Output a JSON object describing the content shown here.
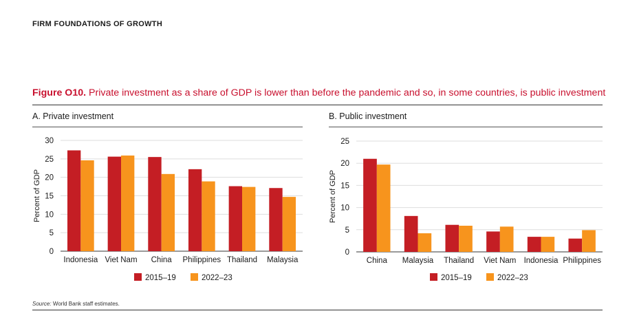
{
  "header": "FIRM FOUNDATIONS OF GROWTH",
  "figure": {
    "label": "Figure O10.",
    "title": "Private investment as a share of GDP is lower than before the pandemic and so, in some countries, is public investment"
  },
  "source": {
    "label": "Source:",
    "text": "World Bank staff estimates."
  },
  "colors": {
    "series1": "#c41e24",
    "series2": "#f7941d",
    "grid": "#dddddd"
  },
  "chart_data": [
    {
      "type": "bar",
      "panel_title": "A. Private investment",
      "ylabel": "Percent of GDP",
      "ylim": [
        0,
        30
      ],
      "yticks": [
        0,
        5,
        10,
        15,
        20,
        25,
        30
      ],
      "categories": [
        "Indonesia",
        "Viet Nam",
        "China",
        "Philippines",
        "Thailand",
        "Malaysia"
      ],
      "series": [
        {
          "name": "2015–19",
          "values": [
            27.3,
            25.6,
            25.5,
            22.2,
            17.6,
            17.1
          ]
        },
        {
          "name": "2022–23",
          "values": [
            24.6,
            25.9,
            20.9,
            18.9,
            17.4,
            14.7
          ]
        }
      ]
    },
    {
      "type": "bar",
      "panel_title": "B. Public investment",
      "ylabel": "Percent of GDP",
      "ylim": [
        0,
        25
      ],
      "yticks": [
        0,
        5,
        10,
        15,
        20,
        25
      ],
      "categories": [
        "China",
        "Malaysia",
        "Thailand",
        "Viet Nam",
        "Indonesia",
        "Philippines"
      ],
      "series": [
        {
          "name": "2015–19",
          "values": [
            21.0,
            8.1,
            6.1,
            4.6,
            3.4,
            3.0
          ]
        },
        {
          "name": "2022–23",
          "values": [
            19.7,
            4.2,
            5.9,
            5.7,
            3.4,
            4.9
          ]
        }
      ]
    }
  ]
}
